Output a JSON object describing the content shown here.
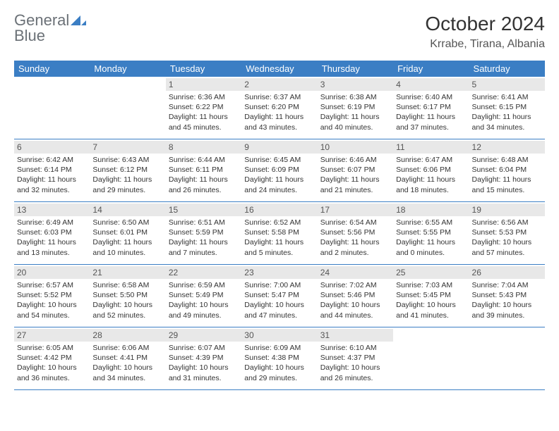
{
  "brand": {
    "line1": "General",
    "line2": "Blue"
  },
  "title": "October 2024",
  "location": "Krrabe, Tirana, Albania",
  "colors": {
    "header_bg": "#3b7ec4",
    "header_text": "#ffffff",
    "daynum_bg": "#e8e8e8",
    "row_border": "#3b7ec4",
    "logo_gray": "#6b7177",
    "logo_blue": "#3b7ec4"
  },
  "day_headers": [
    "Sunday",
    "Monday",
    "Tuesday",
    "Wednesday",
    "Thursday",
    "Friday",
    "Saturday"
  ],
  "weeks": [
    [
      {
        "empty": true
      },
      {
        "empty": true
      },
      {
        "day": "1",
        "sunrise": "Sunrise: 6:36 AM",
        "sunset": "Sunset: 6:22 PM",
        "daylight": "Daylight: 11 hours and 45 minutes."
      },
      {
        "day": "2",
        "sunrise": "Sunrise: 6:37 AM",
        "sunset": "Sunset: 6:20 PM",
        "daylight": "Daylight: 11 hours and 43 minutes."
      },
      {
        "day": "3",
        "sunrise": "Sunrise: 6:38 AM",
        "sunset": "Sunset: 6:19 PM",
        "daylight": "Daylight: 11 hours and 40 minutes."
      },
      {
        "day": "4",
        "sunrise": "Sunrise: 6:40 AM",
        "sunset": "Sunset: 6:17 PM",
        "daylight": "Daylight: 11 hours and 37 minutes."
      },
      {
        "day": "5",
        "sunrise": "Sunrise: 6:41 AM",
        "sunset": "Sunset: 6:15 PM",
        "daylight": "Daylight: 11 hours and 34 minutes."
      }
    ],
    [
      {
        "day": "6",
        "sunrise": "Sunrise: 6:42 AM",
        "sunset": "Sunset: 6:14 PM",
        "daylight": "Daylight: 11 hours and 32 minutes."
      },
      {
        "day": "7",
        "sunrise": "Sunrise: 6:43 AM",
        "sunset": "Sunset: 6:12 PM",
        "daylight": "Daylight: 11 hours and 29 minutes."
      },
      {
        "day": "8",
        "sunrise": "Sunrise: 6:44 AM",
        "sunset": "Sunset: 6:11 PM",
        "daylight": "Daylight: 11 hours and 26 minutes."
      },
      {
        "day": "9",
        "sunrise": "Sunrise: 6:45 AM",
        "sunset": "Sunset: 6:09 PM",
        "daylight": "Daylight: 11 hours and 24 minutes."
      },
      {
        "day": "10",
        "sunrise": "Sunrise: 6:46 AM",
        "sunset": "Sunset: 6:07 PM",
        "daylight": "Daylight: 11 hours and 21 minutes."
      },
      {
        "day": "11",
        "sunrise": "Sunrise: 6:47 AM",
        "sunset": "Sunset: 6:06 PM",
        "daylight": "Daylight: 11 hours and 18 minutes."
      },
      {
        "day": "12",
        "sunrise": "Sunrise: 6:48 AM",
        "sunset": "Sunset: 6:04 PM",
        "daylight": "Daylight: 11 hours and 15 minutes."
      }
    ],
    [
      {
        "day": "13",
        "sunrise": "Sunrise: 6:49 AM",
        "sunset": "Sunset: 6:03 PM",
        "daylight": "Daylight: 11 hours and 13 minutes."
      },
      {
        "day": "14",
        "sunrise": "Sunrise: 6:50 AM",
        "sunset": "Sunset: 6:01 PM",
        "daylight": "Daylight: 11 hours and 10 minutes."
      },
      {
        "day": "15",
        "sunrise": "Sunrise: 6:51 AM",
        "sunset": "Sunset: 5:59 PM",
        "daylight": "Daylight: 11 hours and 7 minutes."
      },
      {
        "day": "16",
        "sunrise": "Sunrise: 6:52 AM",
        "sunset": "Sunset: 5:58 PM",
        "daylight": "Daylight: 11 hours and 5 minutes."
      },
      {
        "day": "17",
        "sunrise": "Sunrise: 6:54 AM",
        "sunset": "Sunset: 5:56 PM",
        "daylight": "Daylight: 11 hours and 2 minutes."
      },
      {
        "day": "18",
        "sunrise": "Sunrise: 6:55 AM",
        "sunset": "Sunset: 5:55 PM",
        "daylight": "Daylight: 11 hours and 0 minutes."
      },
      {
        "day": "19",
        "sunrise": "Sunrise: 6:56 AM",
        "sunset": "Sunset: 5:53 PM",
        "daylight": "Daylight: 10 hours and 57 minutes."
      }
    ],
    [
      {
        "day": "20",
        "sunrise": "Sunrise: 6:57 AM",
        "sunset": "Sunset: 5:52 PM",
        "daylight": "Daylight: 10 hours and 54 minutes."
      },
      {
        "day": "21",
        "sunrise": "Sunrise: 6:58 AM",
        "sunset": "Sunset: 5:50 PM",
        "daylight": "Daylight: 10 hours and 52 minutes."
      },
      {
        "day": "22",
        "sunrise": "Sunrise: 6:59 AM",
        "sunset": "Sunset: 5:49 PM",
        "daylight": "Daylight: 10 hours and 49 minutes."
      },
      {
        "day": "23",
        "sunrise": "Sunrise: 7:00 AM",
        "sunset": "Sunset: 5:47 PM",
        "daylight": "Daylight: 10 hours and 47 minutes."
      },
      {
        "day": "24",
        "sunrise": "Sunrise: 7:02 AM",
        "sunset": "Sunset: 5:46 PM",
        "daylight": "Daylight: 10 hours and 44 minutes."
      },
      {
        "day": "25",
        "sunrise": "Sunrise: 7:03 AM",
        "sunset": "Sunset: 5:45 PM",
        "daylight": "Daylight: 10 hours and 41 minutes."
      },
      {
        "day": "26",
        "sunrise": "Sunrise: 7:04 AM",
        "sunset": "Sunset: 5:43 PM",
        "daylight": "Daylight: 10 hours and 39 minutes."
      }
    ],
    [
      {
        "day": "27",
        "sunrise": "Sunrise: 6:05 AM",
        "sunset": "Sunset: 4:42 PM",
        "daylight": "Daylight: 10 hours and 36 minutes."
      },
      {
        "day": "28",
        "sunrise": "Sunrise: 6:06 AM",
        "sunset": "Sunset: 4:41 PM",
        "daylight": "Daylight: 10 hours and 34 minutes."
      },
      {
        "day": "29",
        "sunrise": "Sunrise: 6:07 AM",
        "sunset": "Sunset: 4:39 PM",
        "daylight": "Daylight: 10 hours and 31 minutes."
      },
      {
        "day": "30",
        "sunrise": "Sunrise: 6:09 AM",
        "sunset": "Sunset: 4:38 PM",
        "daylight": "Daylight: 10 hours and 29 minutes."
      },
      {
        "day": "31",
        "sunrise": "Sunrise: 6:10 AM",
        "sunset": "Sunset: 4:37 PM",
        "daylight": "Daylight: 10 hours and 26 minutes."
      },
      {
        "empty": true
      },
      {
        "empty": true
      }
    ]
  ]
}
